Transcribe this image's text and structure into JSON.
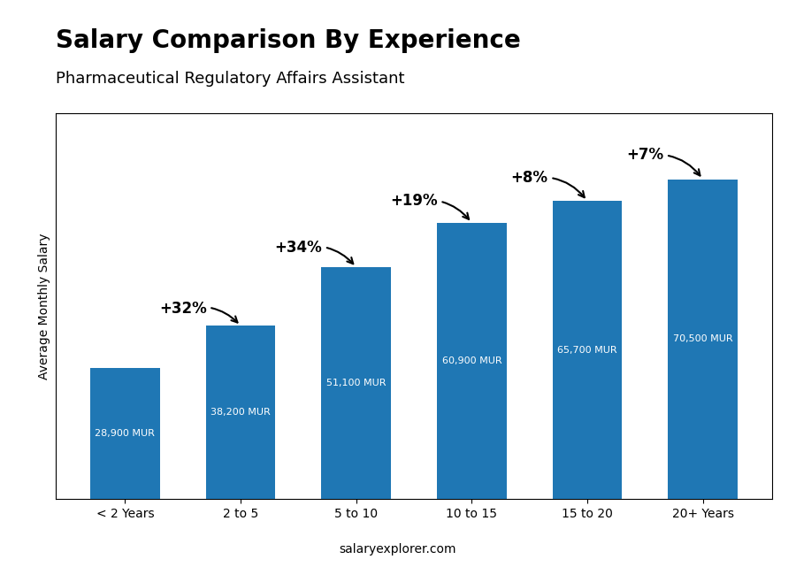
{
  "chart_data": {
    "type": "bar",
    "title": "Salary Comparison By Experience",
    "subtitle": "Pharmaceutical Regulatory Affairs Assistant",
    "ylabel": "Average Monthly Salary",
    "footer": "salaryexplorer.com",
    "categories": [
      "< 2 Years",
      "2 to 5",
      "5 to 10",
      "10 to 15",
      "15 to 20",
      "20+ Years"
    ],
    "values": [
      28900,
      38200,
      51100,
      60900,
      65700,
      70500
    ],
    "value_labels": [
      "28,900 MUR",
      "38,200 MUR",
      "51,100 MUR",
      "60,900 MUR",
      "65,700 MUR",
      "70,500 MUR"
    ],
    "data_labels": true,
    "annotations": [
      "+32%",
      "+34%",
      "+19%",
      "+8%",
      "+7%"
    ],
    "ylim": [
      0,
      85000
    ],
    "yticks": [],
    "tick_labels": "x",
    "grid": false
  }
}
